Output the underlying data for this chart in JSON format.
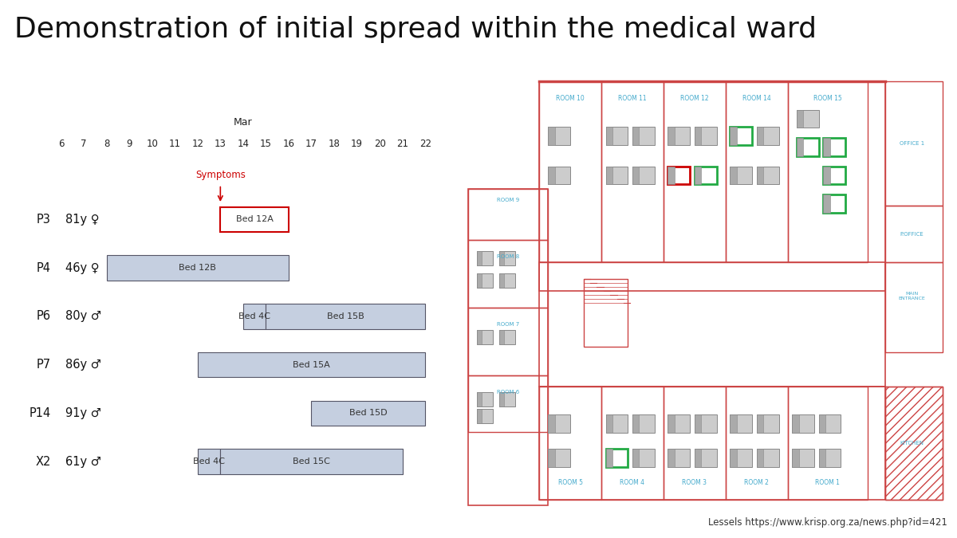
{
  "title": "Demonstration of initial spread within the medical ward",
  "title_fontsize": 26,
  "background_color": "#ffffff",
  "month_label": "Mar",
  "days": [
    6,
    7,
    8,
    9,
    10,
    11,
    12,
    13,
    14,
    15,
    16,
    17,
    18,
    19,
    20,
    21,
    22
  ],
  "symptoms_day": 13,
  "symptoms_label": "Symptoms",
  "patients": [
    {
      "id": "P3",
      "age": "81y",
      "sex": "♀",
      "bars": [
        {
          "start": 13,
          "end": 16,
          "label": "Bed 12A",
          "color": "#ffffff",
          "edgecolor": "#cc0000",
          "lw": 1.5
        }
      ]
    },
    {
      "id": "P4",
      "age": "46y",
      "sex": "♀",
      "bars": [
        {
          "start": 8,
          "end": 16,
          "label": "Bed 12B",
          "color": "#c5cfe0",
          "edgecolor": "#555566",
          "lw": 0.8
        }
      ]
    },
    {
      "id": "P6",
      "age": "80y",
      "sex": "♂",
      "bars": [
        {
          "start": 14,
          "end": 15,
          "label": "Bed 4C",
          "color": "#c5cfe0",
          "edgecolor": "#555566",
          "lw": 0.8
        },
        {
          "start": 15,
          "end": 22,
          "label": "Bed 15B",
          "color": "#c5cfe0",
          "edgecolor": "#555566",
          "lw": 0.8
        }
      ]
    },
    {
      "id": "P7",
      "age": "86y",
      "sex": "♂",
      "bars": [
        {
          "start": 12,
          "end": 22,
          "label": "Bed 15A",
          "color": "#c5cfe0",
          "edgecolor": "#555566",
          "lw": 0.8
        }
      ]
    },
    {
      "id": "P14",
      "age": "91y",
      "sex": "♂",
      "bars": [
        {
          "start": 17,
          "end": 22,
          "label": "Bed 15D",
          "color": "#c5cfe0",
          "edgecolor": "#555566",
          "lw": 0.8
        }
      ]
    },
    {
      "id": "X2",
      "age": "61y",
      "sex": "♂",
      "bars": [
        {
          "start": 12,
          "end": 13,
          "label": "Bed 4C",
          "color": "#c5cfe0",
          "edgecolor": "#555566",
          "lw": 0.8
        },
        {
          "start": 13,
          "end": 21,
          "label": "Bed 15C",
          "color": "#c5cfe0",
          "edgecolor": "#555566",
          "lw": 0.8
        }
      ]
    }
  ],
  "credit": "Lessels https://www.krisp.org.za/news.php?id=421",
  "wall_color": "#cc4444",
  "bed_color": "#aaaaaa",
  "highlight_red": "#cc0000",
  "highlight_green": "#22aa44",
  "room_label_color": "#44aacc"
}
